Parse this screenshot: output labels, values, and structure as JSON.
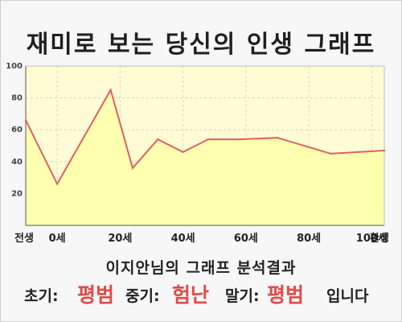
{
  "title": "재미로 보는 당신의 인생 그래프",
  "subtitle": "이지안님의 그래프 분석결과",
  "results": {
    "early_label": "초기:",
    "early_value": "평범",
    "middle_label": "중기:",
    "middle_value": "험난",
    "late_label": "말기:",
    "late_value": "평범",
    "suffix": "입니다"
  },
  "colors": {
    "plot_fill": "#fffbd4",
    "area_fill": "#ffffb0",
    "line": "#e06060",
    "accent_text": "#e24a4a"
  },
  "chart_data": {
    "type": "area",
    "x": [
      -10,
      0,
      17,
      24,
      32,
      40,
      48,
      58,
      70,
      87,
      104
    ],
    "values": [
      66,
      26,
      85,
      36,
      54,
      46,
      54,
      54,
      55,
      45,
      47
    ],
    "x_ticks": [
      {
        "value": -10,
        "label": "전생"
      },
      {
        "value": 0,
        "label": "0세"
      },
      {
        "value": 20,
        "label": "20세"
      },
      {
        "value": 40,
        "label": "40세"
      },
      {
        "value": 60,
        "label": "60세"
      },
      {
        "value": 80,
        "label": "80세"
      },
      {
        "value": 100,
        "label": "100세"
      },
      {
        "value": 104,
        "label": "환생"
      }
    ],
    "y_ticks": [
      20,
      40,
      60,
      80,
      100
    ],
    "ylim": [
      0,
      100
    ],
    "xlim": [
      -10,
      104
    ],
    "grid": true,
    "legend": "none"
  }
}
